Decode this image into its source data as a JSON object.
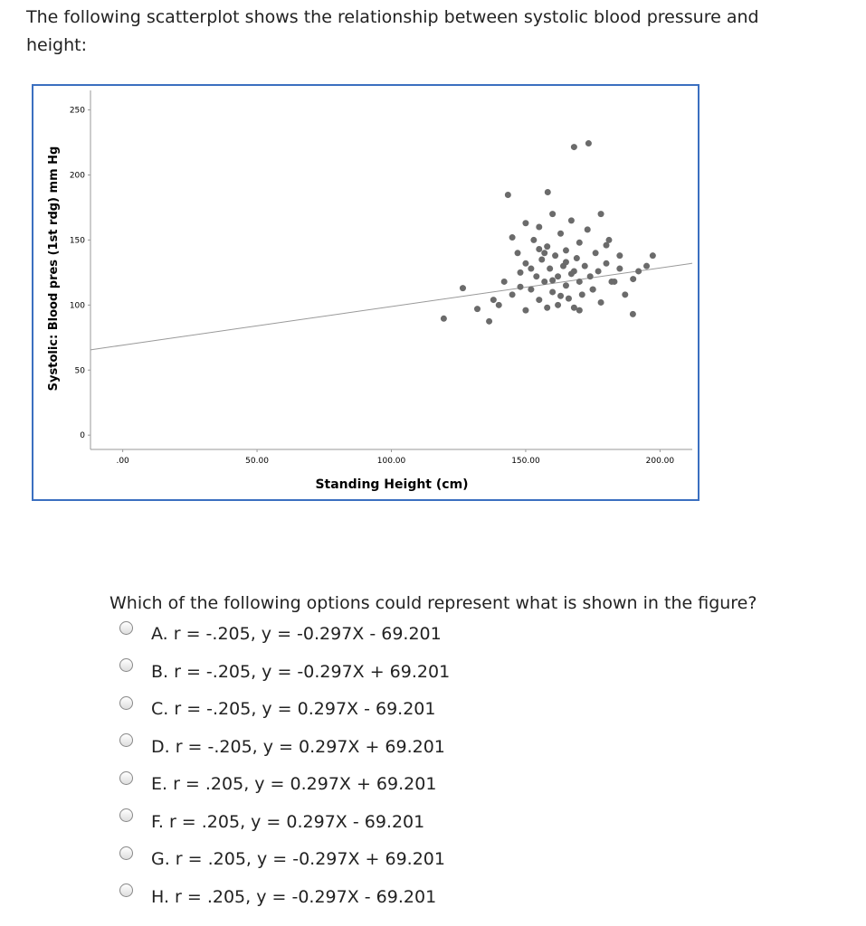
{
  "prompt": "The following scatterplot shows the relationship between systolic blood pressure and height:",
  "chart_data": {
    "type": "scatter",
    "x_label": "Standing Height (cm)",
    "y_label": "Systolic: Blood pres (1st rdg) mm Hg",
    "xlim": [
      -12,
      212
    ],
    "ylim": [
      -11,
      265
    ],
    "xticks": [
      {
        "value": 0,
        "label": ".00"
      },
      {
        "value": 50,
        "label": "50.00"
      },
      {
        "value": 100,
        "label": "100.00"
      },
      {
        "value": 150,
        "label": "150.00"
      },
      {
        "value": 200,
        "label": "200.00"
      }
    ],
    "yticks": [
      0,
      50,
      100,
      150,
      200,
      250
    ],
    "color": "#6b6b6b",
    "x": [
      119.5,
      126.6,
      136.4,
      143.4,
      158.2,
      168,
      173.4,
      197.3,
      189.9,
      140,
      142,
      145,
      147,
      148,
      150,
      150,
      152,
      153,
      154,
      155,
      155,
      156,
      157,
      158,
      158,
      159,
      160,
      160,
      161,
      162,
      162,
      163,
      164,
      165,
      165,
      166,
      167,
      168,
      168,
      169,
      170,
      170,
      171,
      172,
      173,
      174,
      175,
      176,
      177,
      178,
      180,
      181,
      183,
      185,
      187,
      190,
      192,
      145,
      150,
      155,
      160,
      165,
      170,
      175,
      180,
      185,
      148,
      152,
      163,
      167,
      178,
      182,
      157,
      132,
      138,
      195
    ],
    "values": [
      89.6,
      113,
      87.5,
      184.7,
      186.8,
      221.5,
      224.3,
      138,
      93,
      100,
      118,
      108,
      140,
      125,
      96,
      132,
      112,
      150,
      122,
      104,
      160,
      135,
      118,
      98,
      145,
      128,
      110,
      170,
      138,
      100,
      122,
      155,
      130,
      115,
      142,
      105,
      165,
      126,
      98,
      136,
      148,
      118,
      108,
      130,
      158,
      122,
      112,
      140,
      126,
      102,
      132,
      150,
      118,
      128,
      108,
      120,
      126,
      152,
      163,
      143,
      119,
      133,
      96,
      112,
      146,
      138,
      114,
      128,
      107,
      124,
      170,
      118,
      140,
      97,
      104,
      130
    ],
    "trend_line": {
      "x": [
        -12,
        212
      ],
      "values": [
        65.6,
        132.1
      ]
    }
  },
  "question": "Which of the following options could represent what is shown in the figure?",
  "options": [
    "A. r = -.205, y = -0.297X - 69.201",
    "B. r = -.205, y = -0.297X + 69.201",
    "C. r = -.205, y = 0.297X - 69.201",
    "D. r = -.205, y = 0.297X + 69.201",
    "E. r = .205, y = 0.297X + 69.201",
    "F. r = .205, y = 0.297X - 69.201",
    "G. r = .205, y = -0.297X + 69.201",
    "H. r = .205, y = -0.297X - 69.201"
  ]
}
